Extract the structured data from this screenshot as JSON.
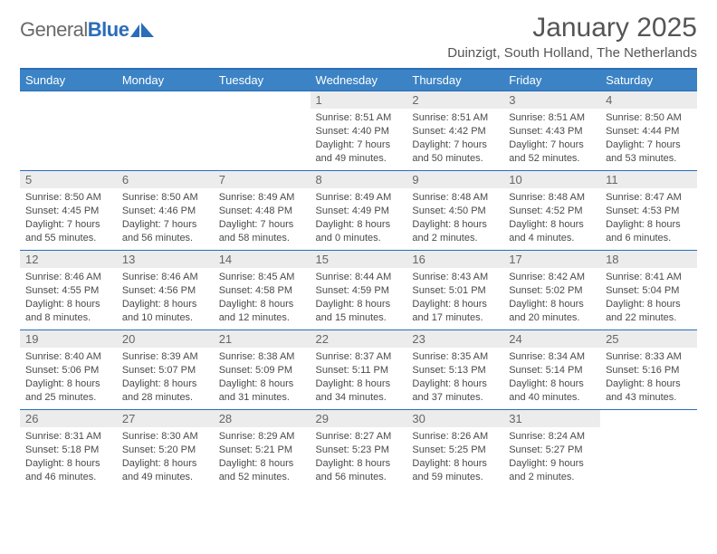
{
  "brand": {
    "part1": "General",
    "part2": "Blue"
  },
  "title": "January 2025",
  "location": "Duinzigt, South Holland, The Netherlands",
  "colors": {
    "header_bg": "#3b83c5",
    "header_border": "#2a6db8",
    "row_border": "#2a6db8",
    "daynum_bg": "#ececec",
    "text": "#4a4a4a",
    "brand_blue": "#2a6db8"
  },
  "weekdays": [
    "Sunday",
    "Monday",
    "Tuesday",
    "Wednesday",
    "Thursday",
    "Friday",
    "Saturday"
  ],
  "weeks": [
    [
      null,
      null,
      null,
      {
        "n": "1",
        "sr": "8:51 AM",
        "ss": "4:40 PM",
        "dl": "7 hours and 49 minutes."
      },
      {
        "n": "2",
        "sr": "8:51 AM",
        "ss": "4:42 PM",
        "dl": "7 hours and 50 minutes."
      },
      {
        "n": "3",
        "sr": "8:51 AM",
        "ss": "4:43 PM",
        "dl": "7 hours and 52 minutes."
      },
      {
        "n": "4",
        "sr": "8:50 AM",
        "ss": "4:44 PM",
        "dl": "7 hours and 53 minutes."
      }
    ],
    [
      {
        "n": "5",
        "sr": "8:50 AM",
        "ss": "4:45 PM",
        "dl": "7 hours and 55 minutes."
      },
      {
        "n": "6",
        "sr": "8:50 AM",
        "ss": "4:46 PM",
        "dl": "7 hours and 56 minutes."
      },
      {
        "n": "7",
        "sr": "8:49 AM",
        "ss": "4:48 PM",
        "dl": "7 hours and 58 minutes."
      },
      {
        "n": "8",
        "sr": "8:49 AM",
        "ss": "4:49 PM",
        "dl": "8 hours and 0 minutes."
      },
      {
        "n": "9",
        "sr": "8:48 AM",
        "ss": "4:50 PM",
        "dl": "8 hours and 2 minutes."
      },
      {
        "n": "10",
        "sr": "8:48 AM",
        "ss": "4:52 PM",
        "dl": "8 hours and 4 minutes."
      },
      {
        "n": "11",
        "sr": "8:47 AM",
        "ss": "4:53 PM",
        "dl": "8 hours and 6 minutes."
      }
    ],
    [
      {
        "n": "12",
        "sr": "8:46 AM",
        "ss": "4:55 PM",
        "dl": "8 hours and 8 minutes."
      },
      {
        "n": "13",
        "sr": "8:46 AM",
        "ss": "4:56 PM",
        "dl": "8 hours and 10 minutes."
      },
      {
        "n": "14",
        "sr": "8:45 AM",
        "ss": "4:58 PM",
        "dl": "8 hours and 12 minutes."
      },
      {
        "n": "15",
        "sr": "8:44 AM",
        "ss": "4:59 PM",
        "dl": "8 hours and 15 minutes."
      },
      {
        "n": "16",
        "sr": "8:43 AM",
        "ss": "5:01 PM",
        "dl": "8 hours and 17 minutes."
      },
      {
        "n": "17",
        "sr": "8:42 AM",
        "ss": "5:02 PM",
        "dl": "8 hours and 20 minutes."
      },
      {
        "n": "18",
        "sr": "8:41 AM",
        "ss": "5:04 PM",
        "dl": "8 hours and 22 minutes."
      }
    ],
    [
      {
        "n": "19",
        "sr": "8:40 AM",
        "ss": "5:06 PM",
        "dl": "8 hours and 25 minutes."
      },
      {
        "n": "20",
        "sr": "8:39 AM",
        "ss": "5:07 PM",
        "dl": "8 hours and 28 minutes."
      },
      {
        "n": "21",
        "sr": "8:38 AM",
        "ss": "5:09 PM",
        "dl": "8 hours and 31 minutes."
      },
      {
        "n": "22",
        "sr": "8:37 AM",
        "ss": "5:11 PM",
        "dl": "8 hours and 34 minutes."
      },
      {
        "n": "23",
        "sr": "8:35 AM",
        "ss": "5:13 PM",
        "dl": "8 hours and 37 minutes."
      },
      {
        "n": "24",
        "sr": "8:34 AM",
        "ss": "5:14 PM",
        "dl": "8 hours and 40 minutes."
      },
      {
        "n": "25",
        "sr": "8:33 AM",
        "ss": "5:16 PM",
        "dl": "8 hours and 43 minutes."
      }
    ],
    [
      {
        "n": "26",
        "sr": "8:31 AM",
        "ss": "5:18 PM",
        "dl": "8 hours and 46 minutes."
      },
      {
        "n": "27",
        "sr": "8:30 AM",
        "ss": "5:20 PM",
        "dl": "8 hours and 49 minutes."
      },
      {
        "n": "28",
        "sr": "8:29 AM",
        "ss": "5:21 PM",
        "dl": "8 hours and 52 minutes."
      },
      {
        "n": "29",
        "sr": "8:27 AM",
        "ss": "5:23 PM",
        "dl": "8 hours and 56 minutes."
      },
      {
        "n": "30",
        "sr": "8:26 AM",
        "ss": "5:25 PM",
        "dl": "8 hours and 59 minutes."
      },
      {
        "n": "31",
        "sr": "8:24 AM",
        "ss": "5:27 PM",
        "dl": "9 hours and 2 minutes."
      },
      null
    ]
  ],
  "labels": {
    "sunrise": "Sunrise:",
    "sunset": "Sunset:",
    "daylight": "Daylight:"
  }
}
